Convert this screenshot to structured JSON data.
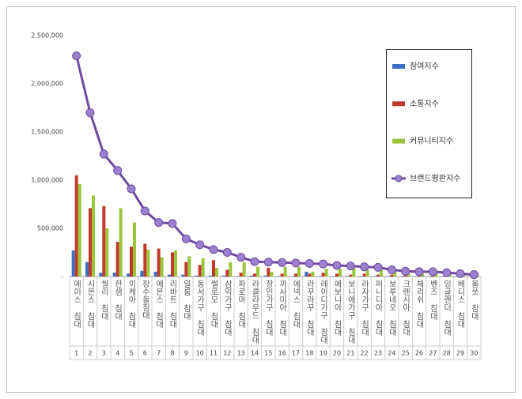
{
  "chart_data": {
    "type": "bar",
    "categories": [
      "에이스 침대",
      "시몬스 침대",
      "씰리 침대",
      "한샘 침대",
      "이케아 침대",
      "장수돌침대",
      "에몬스 침대",
      "리바트 침대",
      "일룸 침대",
      "동서가구 침대",
      "썰로모 침대",
      "삼익가구 침대",
      "파로마 침대",
      "라클라우드 침대",
      "장인가구 침대",
      "까사미아 침대",
      "에넥스 침대",
      "라꾸라꾸 침대",
      "레이디가구 침대",
      "에보니아 침대",
      "보니애가구 침대",
      "라자가구 침대",
      "퍼니디아 침대",
      "보루네오 침대",
      "크렌시아 침대",
      "체리쉬 침대",
      "벤즈 침대",
      "잉글랜더 침대",
      "베디스 침대",
      "올쏘 침대"
    ],
    "category_numbers": [
      1,
      2,
      3,
      4,
      5,
      6,
      7,
      8,
      9,
      10,
      11,
      12,
      13,
      14,
      15,
      16,
      17,
      18,
      19,
      20,
      21,
      22,
      23,
      24,
      25,
      26,
      27,
      28,
      29,
      30
    ],
    "series": [
      {
        "name": "참여지수",
        "type": "bar",
        "color": "#3f6fc4",
        "values": [
          270000,
          150000,
          40000,
          40000,
          30000,
          60000,
          50000,
          20000,
          20000,
          10000,
          10000,
          10000,
          5000,
          10000,
          10000,
          5000,
          5000,
          50000,
          5000,
          5000,
          5000,
          5000,
          5000,
          5000,
          5000,
          5000,
          5000,
          5000,
          5000,
          5000
        ]
      },
      {
        "name": "소통지수",
        "type": "bar",
        "color": "#c0392b",
        "values": [
          1050000,
          710000,
          730000,
          360000,
          310000,
          340000,
          290000,
          250000,
          150000,
          120000,
          170000,
          70000,
          40000,
          30000,
          90000,
          30000,
          30000,
          30000,
          40000,
          30000,
          20000,
          30000,
          20000,
          20000,
          20000,
          20000,
          20000,
          10000,
          10000,
          5000
        ]
      },
      {
        "name": "커뮤니티지수",
        "type": "bar",
        "color": "#9bc53d",
        "values": [
          960000,
          840000,
          500000,
          710000,
          560000,
          280000,
          200000,
          270000,
          210000,
          190000,
          90000,
          150000,
          150000,
          100000,
          50000,
          100000,
          100000,
          50000,
          80000,
          80000,
          90000,
          70000,
          70000,
          50000,
          30000,
          30000,
          30000,
          30000,
          20000,
          10000
        ]
      },
      {
        "name": "브랜드평판지수",
        "type": "line",
        "color": "#6f4a9e",
        "values": [
          2290000,
          1700000,
          1270000,
          1100000,
          910000,
          680000,
          560000,
          550000,
          390000,
          330000,
          280000,
          250000,
          200000,
          155000,
          150000,
          145000,
          140000,
          135000,
          130000,
          115000,
          110000,
          100000,
          95000,
          70000,
          55000,
          50000,
          50000,
          40000,
          30000,
          20000
        ]
      }
    ],
    "ylim": [
      0,
      2500000
    ],
    "yticks": [
      {
        "value": 0,
        "label": "-"
      },
      {
        "value": 500000,
        "label": "500,000"
      },
      {
        "value": 1000000,
        "label": "1,000,000"
      },
      {
        "value": 1500000,
        "label": "1,500,000"
      },
      {
        "value": 2000000,
        "label": "2,000,000"
      },
      {
        "value": 2500000,
        "label": "2,500,000"
      }
    ],
    "grid": false,
    "legend": "right"
  }
}
